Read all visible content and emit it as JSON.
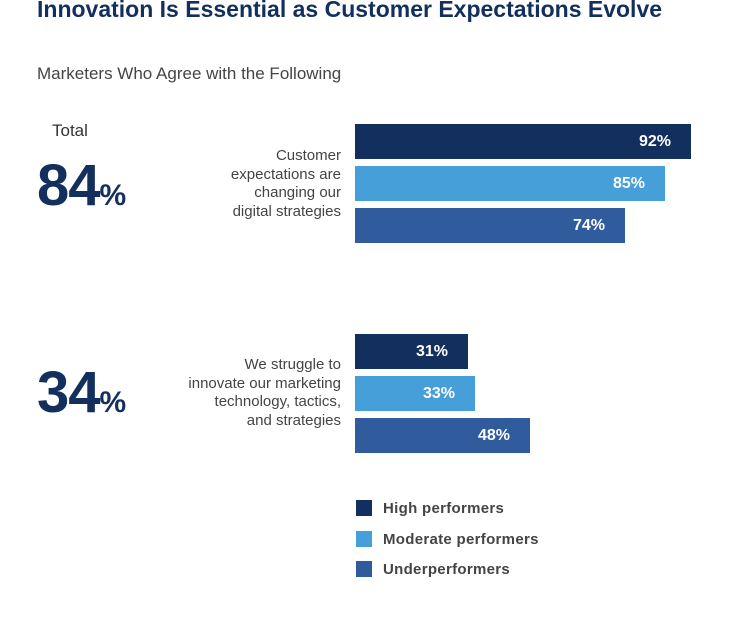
{
  "title": "Innovation Is Essential as Customer Expectations Evolve",
  "subtitle": "Marketers Who Agree with the Following",
  "total_label": "Total",
  "colors": {
    "high": "#132f5e",
    "moderate": "#479fd9",
    "under": "#305b9c"
  },
  "chart_data": {
    "type": "bar",
    "orientation": "horizontal",
    "title": "Innovation Is Essential as Customer Expectations Evolve",
    "subtitle": "Marketers Who Agree with the Following",
    "value_unit": "%",
    "xlim": [
      0,
      100
    ],
    "grid": false,
    "legend_position": "bottom",
    "groups": [
      {
        "label": "Customer expectations are changing our digital strategies",
        "label_lines": [
          "Customer",
          "expectations are",
          "changing our",
          "digital strategies"
        ],
        "total_value": "84",
        "total_unit": "%",
        "values": [
          {
            "series": "High performers",
            "value": 92,
            "label": "92%"
          },
          {
            "series": "Moderate performers",
            "value": 85,
            "label": "85%"
          },
          {
            "series": "Underperformers",
            "value": 74,
            "label": "74%"
          }
        ]
      },
      {
        "label": "We struggle to innovate our marketing technology, tactics, and strategies",
        "label_lines": [
          "We struggle to",
          "innovate our marketing",
          "technology, tactics,",
          "and strategies"
        ],
        "total_value": "34",
        "total_unit": "%",
        "values": [
          {
            "series": "High performers",
            "value": 31,
            "label": "31%"
          },
          {
            "series": "Moderate performers",
            "value": 33,
            "label": "33%"
          },
          {
            "series": "Underperformers",
            "value": 48,
            "label": "48%"
          }
        ]
      }
    ],
    "series": [
      {
        "name": "High performers",
        "color": "#132f5e"
      },
      {
        "name": "Moderate performers",
        "color": "#479fd9"
      },
      {
        "name": "Underperformers",
        "color": "#305b9c"
      }
    ]
  }
}
